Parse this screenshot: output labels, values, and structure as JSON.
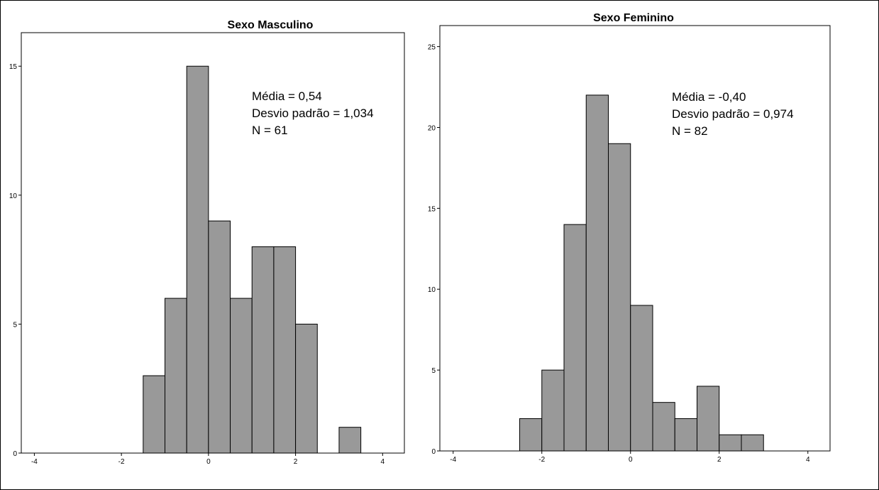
{
  "chart_data": [
    {
      "type": "bar",
      "title": "Sexo Masculino",
      "xlim": [
        -4.3,
        4.5
      ],
      "ylim": [
        0,
        16.3
      ],
      "x_ticks": [
        -4,
        -2,
        0,
        2,
        4
      ],
      "y_ticks": [
        0,
        5,
        10,
        15
      ],
      "bin_width": 0.5,
      "bins": [
        {
          "start": -1.5,
          "value": 3
        },
        {
          "start": -1.0,
          "value": 6
        },
        {
          "start": -0.5,
          "value": 15
        },
        {
          "start": 0.0,
          "value": 9
        },
        {
          "start": 0.5,
          "value": 6
        },
        {
          "start": 1.0,
          "value": 8
        },
        {
          "start": 1.5,
          "value": 8
        },
        {
          "start": 2.0,
          "value": 5
        },
        {
          "start": 3.0,
          "value": 1
        }
      ],
      "annotations": [
        "Média = 0,54",
        "Desvio padrão = 1,034",
        "N = 61"
      ]
    },
    {
      "type": "bar",
      "title": "Sexo  Feminino",
      "xlim": [
        -4.3,
        4.5
      ],
      "ylim": [
        0,
        26.3
      ],
      "x_ticks": [
        -4,
        -2,
        0,
        2,
        4
      ],
      "y_ticks": [
        0,
        5,
        10,
        15,
        20,
        25
      ],
      "bin_width": 0.5,
      "bins": [
        {
          "start": -2.5,
          "value": 2
        },
        {
          "start": -2.0,
          "value": 5
        },
        {
          "start": -1.5,
          "value": 14
        },
        {
          "start": -1.0,
          "value": 22
        },
        {
          "start": -0.5,
          "value": 19
        },
        {
          "start": 0.0,
          "value": 9
        },
        {
          "start": 0.5,
          "value": 3
        },
        {
          "start": 1.0,
          "value": 2
        },
        {
          "start": 1.5,
          "value": 4
        },
        {
          "start": 2.0,
          "value": 1
        },
        {
          "start": 2.5,
          "value": 1
        }
      ],
      "annotations": [
        "Média = -0,40",
        "Desvio padrão = 0,974",
        "N = 82"
      ]
    }
  ]
}
